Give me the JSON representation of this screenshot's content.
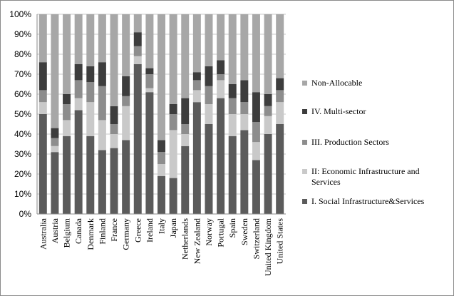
{
  "chart_data": {
    "type": "stacked-bar",
    "categories": [
      "Australia",
      "Austria",
      "Belgium",
      "Canada",
      "Denmark",
      "Finland",
      "France",
      "Germany",
      "Greece",
      "Ireland",
      "Italy",
      "Japan",
      "Netherlands",
      "New Zealand",
      "Norway",
      "Portugal",
      "Spain",
      "Sweden",
      "Switzerland",
      "United Kingdom",
      "United States"
    ],
    "series": [
      {
        "name": "I. Social Infrastructure&Services",
        "color": "#5b5b5b",
        "values": [
          50,
          31,
          39,
          52,
          39,
          32,
          33,
          37,
          75,
          61,
          19,
          18,
          34,
          56,
          45,
          58,
          39,
          42,
          27,
          40,
          45
        ]
      },
      {
        "name": "II: Economic Infrastructure and Services",
        "color": "#c9c9c9",
        "values": [
          6,
          3,
          8,
          6,
          17,
          15,
          7,
          17,
          4,
          2,
          6,
          24,
          6,
          6,
          10,
          9,
          11,
          8,
          9,
          9,
          11
        ]
      },
      {
        "name": "III. Production Sectors",
        "color": "#8d8d8d",
        "values": [
          6,
          4,
          8,
          9,
          10,
          17,
          5,
          5,
          5,
          7,
          6,
          8,
          5,
          5,
          9,
          3,
          8,
          6,
          10,
          5,
          6
        ]
      },
      {
        "name": "IV. Multi-sector",
        "color": "#3d3d3d",
        "values": [
          14,
          5,
          5,
          8,
          8,
          12,
          9,
          10,
          7,
          3,
          6,
          5,
          13,
          4,
          10,
          7,
          7,
          11,
          15,
          6,
          6
        ]
      },
      {
        "name": "Non-Allocable",
        "color": "#a7a7a7",
        "values": [
          24,
          57,
          40,
          25,
          26,
          24,
          46,
          31,
          9,
          27,
          63,
          45,
          42,
          29,
          26,
          23,
          35,
          33,
          39,
          40,
          32
        ]
      }
    ],
    "ylim": [
      0,
      100
    ],
    "yticks": [
      {
        "value": 0,
        "label": "0%"
      },
      {
        "value": 10,
        "label": "10%"
      },
      {
        "value": 20,
        "label": "20%"
      },
      {
        "value": 30,
        "label": "30%"
      },
      {
        "value": 40,
        "label": "40%"
      },
      {
        "value": 50,
        "label": "50%"
      },
      {
        "value": 60,
        "label": "60%"
      },
      {
        "value": 70,
        "label": "70%"
      },
      {
        "value": 80,
        "label": "80%"
      },
      {
        "value": 90,
        "label": "90%"
      },
      {
        "value": 100,
        "label": "100%"
      }
    ],
    "grid": true
  }
}
